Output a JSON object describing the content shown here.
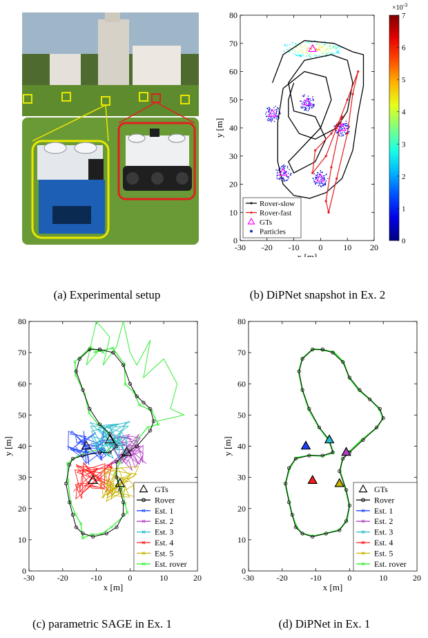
{
  "captions": {
    "a": "(a) Experimental setup",
    "b": "(b) DiPNet snapshot in Ex. 2",
    "c": "(c) parametric SAGE in Ex. 1",
    "d": "(d) DiPNet in Ex. 1"
  },
  "colors": {
    "rover": "#000000",
    "rover_fast": "#e31a1c",
    "gt_b": "#ff00ff",
    "est1": "#1f3fff",
    "est2": "#b03fc0",
    "est3": "#25b9c9",
    "est4": "#ff1a1a",
    "est5": "#c8b400",
    "est_rover": "#33ee33"
  },
  "chart_data": [
    {
      "id": "b",
      "type": "scatter",
      "xlabel": "x [m]",
      "ylabel": "y [m]",
      "xlim": [
        -30,
        20
      ],
      "ylim": [
        0,
        80
      ],
      "xticks": [
        "-30",
        "-20",
        "-10",
        "0",
        "10",
        "20"
      ],
      "yticks": [
        "0",
        "10",
        "20",
        "30",
        "40",
        "50",
        "60",
        "70",
        "80"
      ],
      "colorbar": {
        "min": 0,
        "max": 0.007,
        "exponent_label": "×10",
        "exponent_power": "-3",
        "ticks": [
          "0",
          "1",
          "2",
          "3",
          "4",
          "5",
          "6",
          "7"
        ]
      },
      "legend": [
        "Rover-slow",
        "Rover-fast",
        "GTs",
        "Particles"
      ],
      "gts": [
        [
          -18,
          45
        ],
        [
          -14,
          24
        ],
        [
          -5,
          49
        ],
        [
          0,
          22
        ],
        [
          8,
          40
        ],
        [
          -3,
          68
        ]
      ],
      "rover_slow": [
        [
          -18,
          56
        ],
        [
          -14,
          66
        ],
        [
          -6,
          71
        ],
        [
          5,
          70
        ],
        [
          12,
          67
        ],
        [
          16,
          66
        ],
        [
          16,
          55
        ],
        [
          14,
          45
        ],
        [
          12,
          32
        ],
        [
          8,
          22
        ],
        [
          2,
          17
        ],
        [
          -4,
          15
        ],
        [
          -10,
          16
        ],
        [
          -14,
          20
        ],
        [
          -16,
          28
        ],
        [
          -16,
          42
        ],
        [
          -14,
          54
        ],
        [
          -6,
          60
        ],
        [
          2,
          58
        ],
        [
          4,
          50
        ],
        [
          0,
          40
        ],
        [
          -6,
          34
        ],
        [
          -12,
          28
        ],
        [
          -10,
          24
        ],
        [
          -2,
          28
        ],
        [
          2,
          36
        ],
        [
          -2,
          44
        ],
        [
          -10,
          46
        ],
        [
          -12,
          56
        ],
        [
          -6,
          64
        ],
        [
          4,
          66
        ],
        [
          10,
          64
        ],
        [
          12,
          56
        ],
        [
          10,
          46
        ],
        [
          6,
          40
        ],
        [
          -2,
          36
        ],
        [
          -8,
          38
        ],
        [
          -12,
          44
        ],
        [
          -12,
          50
        ],
        [
          -10,
          56
        ]
      ],
      "rover_fast": [
        [
          3,
          10
        ],
        [
          6,
          22
        ],
        [
          10,
          38
        ],
        [
          12,
          52
        ],
        [
          14,
          60
        ],
        [
          10,
          50
        ],
        [
          6,
          40
        ],
        [
          2,
          30
        ],
        [
          -3,
          24
        ],
        [
          -2,
          32
        ],
        [
          4,
          38
        ],
        [
          8,
          44
        ],
        [
          4,
          26
        ],
        [
          2,
          14
        ],
        [
          3,
          10
        ]
      ]
    },
    {
      "id": "c",
      "type": "line",
      "xlabel": "x [m]",
      "ylabel": "y [m]",
      "xlim": [
        -30,
        20
      ],
      "ylim": [
        0,
        80
      ],
      "xticks": [
        "-30",
        "-20",
        "-10",
        "0",
        "10",
        "20"
      ],
      "yticks": [
        "0",
        "10",
        "20",
        "30",
        "40",
        "50",
        "60",
        "70",
        "80"
      ],
      "legend": [
        "GTs",
        "Rover",
        "Est. 1",
        "Est. 2",
        "Est. 3",
        "Est. 4",
        "Est. 5",
        "Est. rover"
      ],
      "gts": [
        [
          -13,
          40
        ],
        [
          -1,
          38
        ],
        [
          -6,
          42
        ],
        [
          -11,
          29
        ],
        [
          -3,
          28
        ]
      ],
      "rover": [
        [
          -9,
          71
        ],
        [
          -5,
          70
        ],
        [
          -2,
          66
        ],
        [
          0,
          60
        ],
        [
          2,
          56
        ],
        [
          4,
          54
        ],
        [
          6,
          52
        ],
        [
          7,
          48
        ],
        [
          6,
          45
        ],
        [
          2,
          40
        ],
        [
          -2,
          37
        ],
        [
          -4,
          35
        ],
        [
          -4,
          30
        ],
        [
          -3,
          26
        ],
        [
          -2,
          22
        ],
        [
          -2,
          18
        ],
        [
          -4,
          14
        ],
        [
          -7,
          12
        ],
        [
          -11,
          11
        ],
        [
          -14,
          12
        ],
        [
          -16,
          14
        ],
        [
          -17,
          18
        ],
        [
          -18,
          22
        ],
        [
          -19,
          28
        ],
        [
          -18,
          34
        ],
        [
          -17,
          36
        ],
        [
          -14,
          37
        ],
        [
          -9,
          38
        ],
        [
          -6,
          38
        ],
        [
          -4,
          40
        ],
        [
          -6,
          44
        ],
        [
          -9,
          47
        ],
        [
          -12,
          52
        ],
        [
          -14,
          58
        ],
        [
          -16,
          64
        ],
        [
          -15,
          68
        ],
        [
          -12,
          71
        ],
        [
          -9,
          71
        ]
      ]
    },
    {
      "id": "d",
      "type": "line",
      "xlabel": "x [m]",
      "ylabel": "y [m]",
      "xlim": [
        -30,
        20
      ],
      "ylim": [
        0,
        80
      ],
      "xticks": [
        "-30",
        "-20",
        "-10",
        "0",
        "10",
        "20"
      ],
      "yticks": [
        "0",
        "10",
        "20",
        "30",
        "40",
        "50",
        "60",
        "70",
        "80"
      ],
      "legend": [
        "GTs",
        "Rover",
        "Est. 1",
        "Est. 2",
        "Est. 3",
        "Est. 4",
        "Est. 5",
        "Est. rover"
      ],
      "gts": [
        [
          -13,
          40
        ],
        [
          -1,
          38
        ],
        [
          -6,
          42
        ],
        [
          -11,
          29
        ],
        [
          -3,
          28
        ]
      ],
      "rover": [
        [
          -8,
          71
        ],
        [
          -5,
          70
        ],
        [
          -2,
          67
        ],
        [
          0,
          62
        ],
        [
          3,
          58
        ],
        [
          6,
          55
        ],
        [
          9,
          52
        ],
        [
          10,
          49
        ],
        [
          8,
          46
        ],
        [
          4,
          42
        ],
        [
          0,
          38
        ],
        [
          -2,
          36
        ],
        [
          -3,
          32
        ],
        [
          -1,
          26
        ],
        [
          0,
          21
        ],
        [
          -1,
          16
        ],
        [
          -3,
          13
        ],
        [
          -7,
          12
        ],
        [
          -11,
          11
        ],
        [
          -14,
          12
        ],
        [
          -16,
          14
        ],
        [
          -17,
          18
        ],
        [
          -18,
          22
        ],
        [
          -19,
          28
        ],
        [
          -18,
          33
        ],
        [
          -16,
          36
        ],
        [
          -12,
          37
        ],
        [
          -8,
          37
        ],
        [
          -5,
          38
        ],
        [
          -6,
          42
        ],
        [
          -9,
          46
        ],
        [
          -12,
          52
        ],
        [
          -14,
          58
        ],
        [
          -15,
          64
        ],
        [
          -14,
          68
        ],
        [
          -11,
          71
        ],
        [
          -8,
          71
        ]
      ]
    }
  ]
}
